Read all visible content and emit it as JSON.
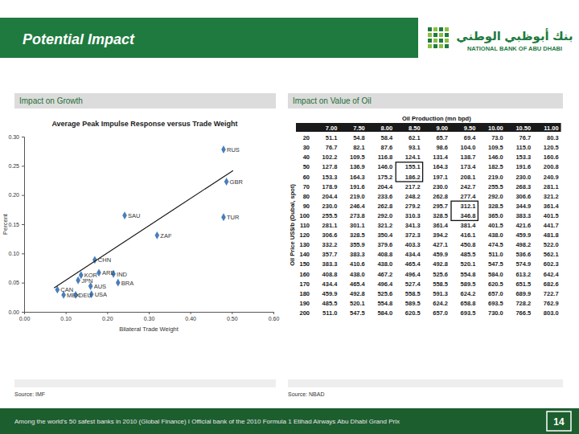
{
  "slide": {
    "title": "Potential Impact",
    "logo_arabic": "بنك أبوظبي الوطني",
    "logo_english": "NATIONAL BANK OF ABU DHABI",
    "left_header": "Impact on Growth",
    "right_header": "Impact on Value of Oil",
    "left_source": "Source: IMF",
    "right_source": "Source: NBAD",
    "footer": "Among the world's 50 safest banks in 2010 (Global Finance) I Official bank of the 2010 Formula 1 Etihad Airways Abu Dhabi Grand Prix",
    "page": "14"
  },
  "chart_data": {
    "type": "scatter",
    "title": "Average Peak Impulse Response versus Trade Weight",
    "x_label": "Bilateral Trade Weight",
    "y_label": "Percent",
    "xlim": [
      0,
      0.6
    ],
    "ylim": [
      0,
      0.3
    ],
    "xticks": [
      {
        "value": 0,
        "label": "0.00"
      },
      {
        "value": 0.1,
        "label": "0.10"
      },
      {
        "value": 0.2,
        "label": "0.20"
      },
      {
        "value": 0.3,
        "label": "0.30"
      },
      {
        "value": 0.4,
        "label": "0.40"
      },
      {
        "value": 0.5,
        "label": "0.50"
      },
      {
        "value": 0.6,
        "label": "0.60"
      }
    ],
    "yticks": [
      {
        "value": 0,
        "label": "0.00"
      },
      {
        "value": 0.05,
        "label": "0.05"
      },
      {
        "value": 0.1,
        "label": "0.10"
      },
      {
        "value": 0.15,
        "label": "0.15"
      },
      {
        "value": 0.2,
        "label": "0.20"
      },
      {
        "value": 0.25,
        "label": "0.25"
      },
      {
        "value": 0.3,
        "label": "0.30"
      }
    ],
    "grid": false,
    "series": [
      {
        "type": "scatter",
        "marker": "diamond",
        "color": "#4a7ebb",
        "labels": [
          "RUS",
          "GBR",
          "TUR",
          "SAU",
          "ZAF",
          "CHN",
          "KOR",
          "JPN",
          "ARE",
          "IND",
          "BRA",
          "AUS",
          "USA",
          "CAN",
          "MEX",
          "DEU"
        ],
        "x": [
          0.48,
          0.487,
          0.48,
          0.242,
          0.32,
          0.17,
          0.137,
          0.13,
          0.18,
          0.215,
          0.226,
          0.16,
          0.162,
          0.08,
          0.095,
          0.124
        ],
        "values": [
          0.278,
          0.223,
          0.162,
          0.165,
          0.131,
          0.089,
          0.063,
          0.054,
          0.067,
          0.065,
          0.05,
          0.044,
          0.03,
          0.038,
          0.029,
          0.029
        ]
      },
      {
        "type": "line",
        "line_style": "solid",
        "color": "#1a1a1a",
        "x": [
          0.072,
          0.503
        ],
        "values": [
          0.041,
          0.242
        ]
      }
    ]
  },
  "table": {
    "column_header": "Oil Production (mn bpd)",
    "row_header": "Oil Price US$/b (Dubai, spot)",
    "columns": [
      "7.00",
      "7.50",
      "8.00",
      "8.50",
      "9.00",
      "9.50",
      "10.00",
      "10.50",
      "11.00"
    ],
    "rows": [
      {
        "label": "20",
        "values": [
          "51.1",
          "54.8",
          "58.4",
          "62.1",
          "65.7",
          "69.4",
          "73.0",
          "76.7",
          "80.3"
        ]
      },
      {
        "label": "30",
        "values": [
          "76.7",
          "82.1",
          "87.6",
          "93.1",
          "98.6",
          "104.0",
          "109.5",
          "115.0",
          "120.5"
        ]
      },
      {
        "label": "40",
        "values": [
          "102.2",
          "109.5",
          "116.8",
          "124.1",
          "131.4",
          "138.7",
          "146.0",
          "153.3",
          "160.6"
        ]
      },
      {
        "label": "50",
        "values": [
          "127.8",
          "136.9",
          "146.0",
          "155.1",
          "164.3",
          "173.4",
          "182.5",
          "191.6",
          "200.8"
        ]
      },
      {
        "label": "60",
        "values": [
          "153.3",
          "164.3",
          "175.2",
          "186.2",
          "197.1",
          "208.1",
          "219.0",
          "230.0",
          "240.9"
        ]
      },
      {
        "label": "70",
        "values": [
          "178.9",
          "191.6",
          "204.4",
          "217.2",
          "230.0",
          "242.7",
          "255.5",
          "268.3",
          "281.1"
        ]
      },
      {
        "label": "80",
        "values": [
          "204.4",
          "219.0",
          "233.6",
          "248.2",
          "262.8",
          "277.4",
          "292.0",
          "306.6",
          "321.2"
        ]
      },
      {
        "label": "90",
        "values": [
          "230.0",
          "246.4",
          "262.8",
          "279.2",
          "295.7",
          "312.1",
          "328.5",
          "344.9",
          "361.4"
        ]
      },
      {
        "label": "100",
        "values": [
          "255.5",
          "273.8",
          "292.0",
          "310.3",
          "328.5",
          "346.8",
          "365.0",
          "383.3",
          "401.5"
        ]
      },
      {
        "label": "110",
        "values": [
          "281.1",
          "301.1",
          "321.2",
          "341.3",
          "361.4",
          "381.4",
          "401.5",
          "421.6",
          "441.7"
        ]
      },
      {
        "label": "120",
        "values": [
          "306.6",
          "328.5",
          "350.4",
          "372.3",
          "394.2",
          "416.1",
          "438.0",
          "459.9",
          "481.8"
        ]
      },
      {
        "label": "130",
        "values": [
          "332.2",
          "355.9",
          "379.6",
          "403.3",
          "427.1",
          "450.8",
          "474.5",
          "498.2",
          "522.0"
        ]
      },
      {
        "label": "140",
        "values": [
          "357.7",
          "383.3",
          "408.8",
          "434.4",
          "459.9",
          "485.5",
          "511.0",
          "536.6",
          "562.1"
        ]
      },
      {
        "label": "150",
        "values": [
          "383.3",
          "410.6",
          "438.0",
          "465.4",
          "492.8",
          "520.1",
          "547.5",
          "574.9",
          "602.3"
        ]
      },
      {
        "label": "160",
        "values": [
          "408.8",
          "438.0",
          "467.2",
          "496.4",
          "525.6",
          "554.8",
          "584.0",
          "613.2",
          "642.4"
        ]
      },
      {
        "label": "170",
        "values": [
          "434.4",
          "465.4",
          "496.4",
          "527.4",
          "558.5",
          "589.5",
          "620.5",
          "651.5",
          "682.6"
        ]
      },
      {
        "label": "180",
        "values": [
          "459.9",
          "492.8",
          "525.6",
          "558.5",
          "591.3",
          "624.2",
          "657.0",
          "689.9",
          "722.7"
        ]
      },
      {
        "label": "190",
        "values": [
          "485.5",
          "520.1",
          "554.8",
          "589.5",
          "624.2",
          "658.8",
          "693.5",
          "728.2",
          "762.9"
        ]
      },
      {
        "label": "200",
        "values": [
          "511.0",
          "547.5",
          "584.0",
          "620.5",
          "657.0",
          "693.5",
          "730.0",
          "766.5",
          "803.0"
        ]
      }
    ]
  }
}
